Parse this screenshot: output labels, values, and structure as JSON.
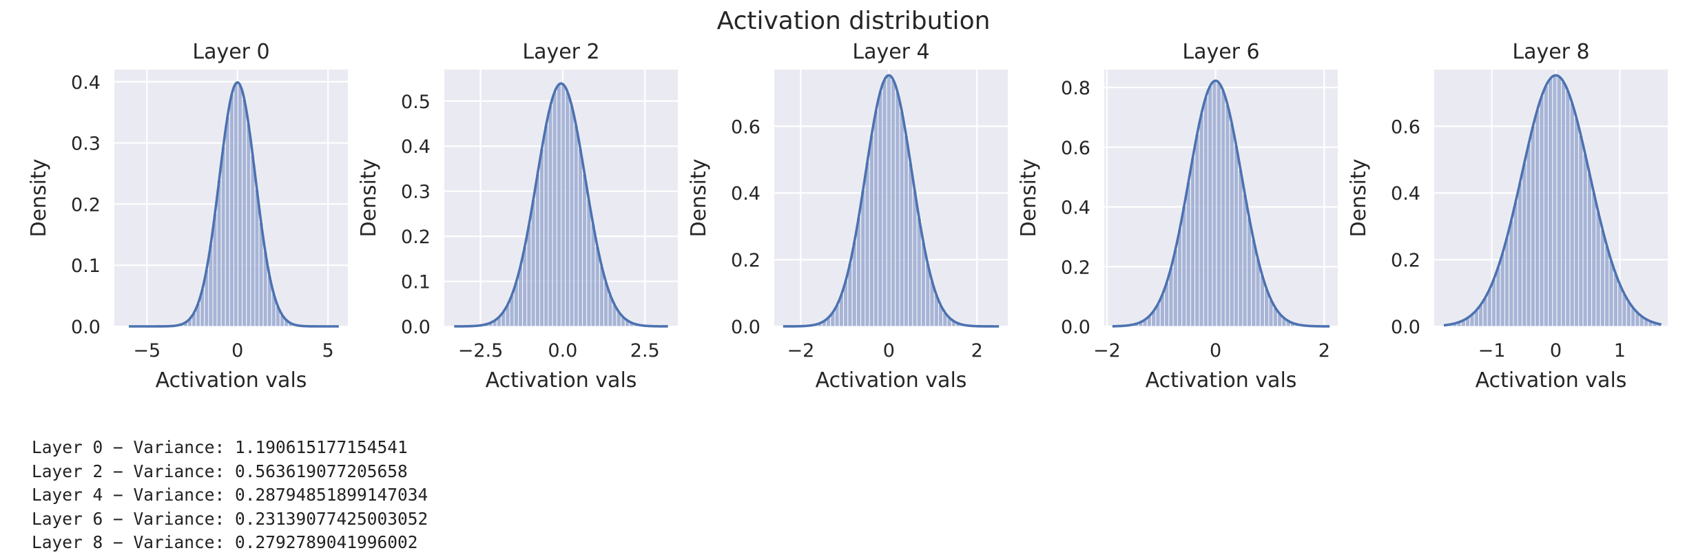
{
  "figure_title": "Activation distribution",
  "colors": {
    "panel_bg": "#eaeaf2",
    "grid": "#ffffff",
    "bar": "#8da0cb",
    "line": "#4c72b0",
    "text": "#262626"
  },
  "chart_data": [
    {
      "type": "histogram+kde",
      "title": "Layer 0",
      "xlabel": "Activation vals",
      "ylabel": "Density",
      "xlim": [
        -6.8,
        6.1
      ],
      "ylim": [
        0,
        0.42
      ],
      "xticks": [
        -5,
        0,
        5
      ],
      "xtick_labels": [
        "−5",
        "0",
        "5"
      ],
      "yticks": [
        0.0,
        0.1,
        0.2,
        0.3,
        0.4
      ],
      "ytick_labels": [
        "0.0",
        "0.1",
        "0.2",
        "0.3",
        "0.4"
      ],
      "distribution": {
        "mean": 0.0,
        "std": 1.0
      },
      "hist_range": [
        -6.0,
        5.6
      ],
      "bins": 50
    },
    {
      "type": "histogram+kde",
      "title": "Layer 2",
      "xlabel": "Activation vals",
      "ylabel": "Density",
      "xlim": [
        -3.6,
        3.5
      ],
      "ylim": [
        0,
        0.57
      ],
      "xticks": [
        -2.5,
        0.0,
        2.5
      ],
      "xtick_labels": [
        "−2.5",
        "0.0",
        "2.5"
      ],
      "yticks": [
        0.0,
        0.1,
        0.2,
        0.3,
        0.4,
        0.5
      ],
      "ytick_labels": [
        "0.0",
        "0.1",
        "0.2",
        "0.3",
        "0.4",
        "0.5"
      ],
      "distribution": {
        "mean": -0.05,
        "std": 0.74
      },
      "hist_range": [
        -3.3,
        3.2
      ],
      "bins": 50
    },
    {
      "type": "histogram+kde",
      "title": "Layer 4",
      "xlabel": "Activation vals",
      "ylabel": "Density",
      "xlim": [
        -2.6,
        2.7
      ],
      "ylim": [
        0,
        0.77
      ],
      "xticks": [
        -2,
        0,
        2
      ],
      "xtick_labels": [
        "−2",
        "0",
        "2"
      ],
      "yticks": [
        0.0,
        0.2,
        0.4,
        0.6
      ],
      "ytick_labels": [
        "0.0",
        "0.2",
        "0.4",
        "0.6"
      ],
      "distribution": {
        "mean": 0.0,
        "std": 0.53
      },
      "hist_range": [
        -2.4,
        2.5
      ],
      "bins": 50
    },
    {
      "type": "histogram+kde",
      "title": "Layer 6",
      "xlabel": "Activation vals",
      "ylabel": "Density",
      "xlim": [
        -2.05,
        2.25
      ],
      "ylim": [
        0,
        0.86
      ],
      "xticks": [
        -2,
        0,
        2
      ],
      "xtick_labels": [
        "−2",
        "0",
        "2"
      ],
      "yticks": [
        0.0,
        0.2,
        0.4,
        0.6,
        0.8
      ],
      "ytick_labels": [
        "0.0",
        "0.2",
        "0.4",
        "0.6",
        "0.8"
      ],
      "distribution": {
        "mean": 0.0,
        "std": 0.485
      },
      "hist_range": [
        -1.9,
        2.1
      ],
      "bins": 50
    },
    {
      "type": "histogram+kde",
      "title": "Layer 8",
      "xlabel": "Activation vals",
      "ylabel": "Density",
      "xlim": [
        -1.9,
        1.75
      ],
      "ylim": [
        0,
        0.77
      ],
      "xticks": [
        -1,
        0,
        1
      ],
      "xtick_labels": [
        "−1",
        "0",
        "1"
      ],
      "yticks": [
        0.0,
        0.2,
        0.4,
        0.6
      ],
      "ytick_labels": [
        "0.0",
        "0.2",
        "0.4",
        "0.6"
      ],
      "distribution": {
        "mean": 0.0,
        "std": 0.53
      },
      "hist_range": [
        -1.75,
        1.65
      ],
      "bins": 50
    }
  ],
  "variance_lines": [
    "Layer 0 − Variance: 1.190615177154541",
    "Layer 2 − Variance: 0.563619077205658",
    "Layer 4 − Variance: 0.28794851899147034",
    "Layer 6 − Variance: 0.23139077425003052",
    "Layer 8 − Variance: 0.2792789041996002"
  ]
}
